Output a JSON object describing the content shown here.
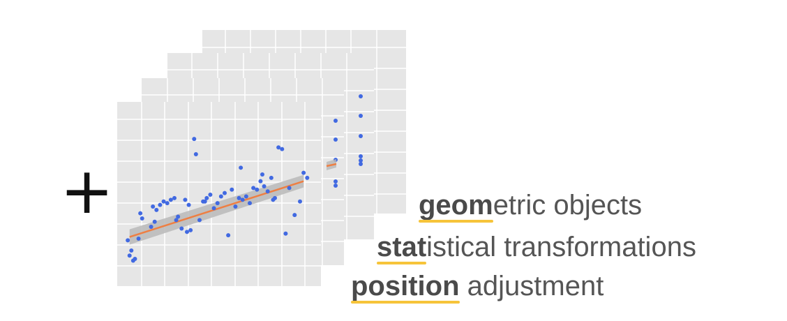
{
  "plus_sign": "+",
  "labels": {
    "geom_highlight": "geom",
    "geom_rest": "etric objects",
    "stat_highlight": "stat",
    "stat_rest": "istical transformations",
    "position_highlight": "position",
    "position_rest": " adjustment"
  },
  "colors": {
    "panel": "#e6e6e6",
    "grid": "#ffffff",
    "points": "#4169e1",
    "trend_line": "#ee7f43",
    "confidence_band": "#b8b8b8",
    "underline": "#f6c43a",
    "text": "#555555"
  },
  "chart_data": {
    "type": "scatter",
    "x": [
      0.2,
      0.4,
      0.5,
      0.3,
      0.6,
      0.8,
      0.9,
      1.0,
      1.5,
      1.6,
      1.8,
      2.0,
      2.2,
      2.4,
      2.6,
      2.8,
      3.0,
      3.2,
      3.4,
      3.6,
      3.9,
      4.0,
      4.2,
      4.4,
      4.6,
      4.8,
      5.0,
      5.2,
      5.4,
      5.6,
      5.8,
      6.0,
      6.2,
      6.4,
      6.6,
      6.8,
      7.0,
      7.2,
      7.4,
      7.6,
      7.8,
      8.0,
      8.2,
      8.4,
      8.6,
      8.8,
      9.0,
      9.2,
      9.5,
      9.8,
      10.0,
      10.2,
      3.5,
      4.5,
      6.5,
      7.7,
      3.7,
      1.7,
      2.9,
      8.3
    ],
    "y": [
      1.8,
      1.2,
      0.6,
      0.9,
      0.7,
      1.9,
      3.4,
      3.1,
      2.6,
      3.8,
      3.6,
      3.9,
      4.1,
      4.0,
      4.2,
      4.3,
      3.2,
      2.5,
      4.2,
      3.9,
      7.8,
      6.9,
      3.0,
      4.1,
      4.3,
      4.5,
      3.7,
      4.0,
      4.4,
      4.6,
      2.1,
      4.8,
      3.8,
      4.3,
      4.2,
      4.4,
      4.0,
      4.9,
      4.8,
      5.3,
      5.0,
      4.7,
      5.5,
      4.3,
      7.3,
      7.2,
      2.2,
      4.9,
      3.3,
      4.1,
      5.8,
      5.5,
      2.3,
      4.1,
      6.1,
      5.7,
      2.4,
      2.9,
      3.0,
      4.2
    ],
    "trend": {
      "x": [
        0.3,
        10.0
      ],
      "y": [
        2.0,
        5.3
      ]
    },
    "xlim": [
      0,
      10.5
    ],
    "ylim": [
      0,
      9.5
    ],
    "grid": true
  }
}
